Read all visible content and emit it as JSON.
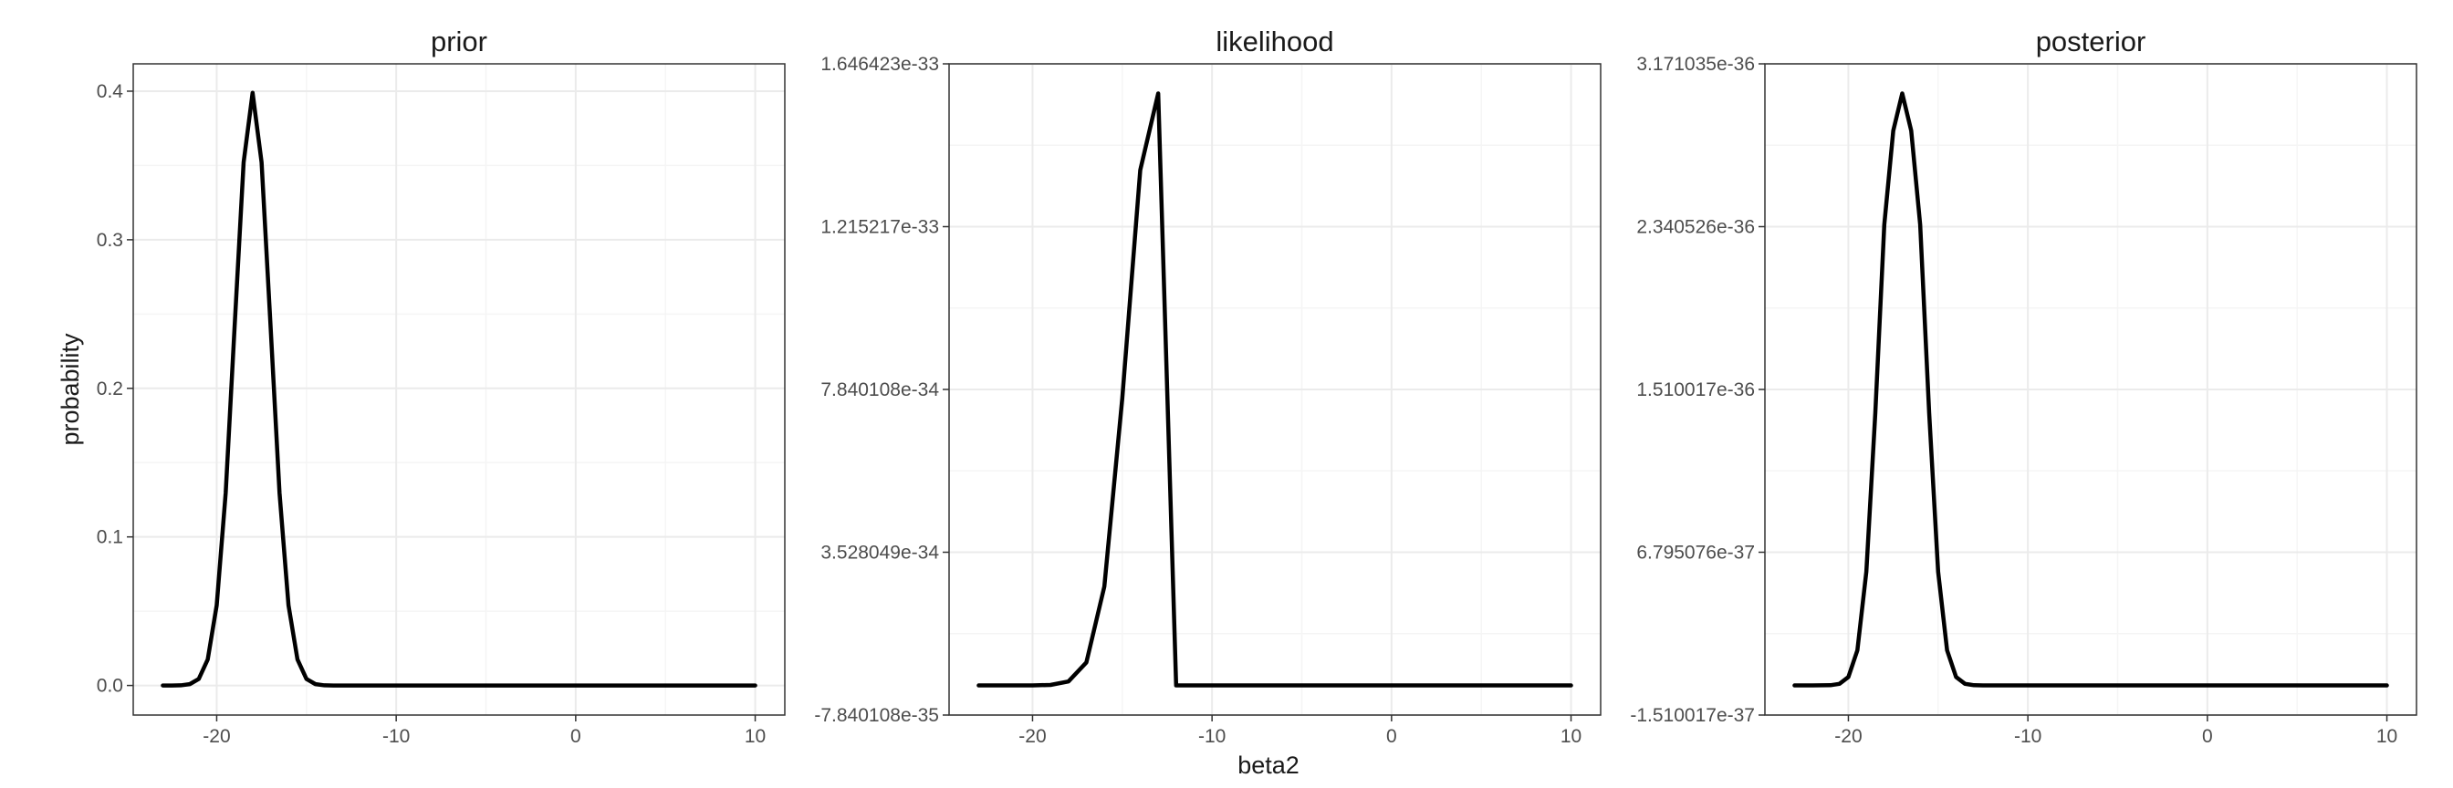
{
  "figure": {
    "xlabel": "beta2",
    "ylabel": "probability"
  },
  "chart_data": [
    {
      "type": "line",
      "title": "prior",
      "xlim": [
        -24.65,
        11.65
      ],
      "ylim": [
        -0.0199,
        0.4184
      ],
      "x_ticks": [
        -20,
        -10,
        0,
        10
      ],
      "x_tick_labels": [
        "-20",
        "-10",
        "0",
        "10"
      ],
      "y_ticks": [
        0.0,
        0.1,
        0.2,
        0.3,
        0.4
      ],
      "y_tick_labels": [
        "0.0",
        "0.1",
        "0.2",
        "0.3",
        "0.4"
      ],
      "grid": true,
      "series": [
        {
          "x": [
            -23,
            -22.5,
            -22,
            -21.5,
            -21,
            -20.5,
            -20,
            -19.5,
            -19,
            -18.5,
            -18,
            -17.5,
            -17,
            -16.5,
            -16,
            -15.5,
            -15,
            -14.5,
            -14,
            -13.5,
            -13,
            -12,
            -10,
            -5,
            0,
            5,
            10
          ],
          "y": [
            0.0,
            0.0,
            0.0001,
            0.0009,
            0.0044,
            0.0175,
            0.054,
            0.1295,
            0.242,
            0.3521,
            0.3989,
            0.3521,
            0.242,
            0.1295,
            0.054,
            0.0175,
            0.0044,
            0.0009,
            0.0001,
            0.0,
            0.0,
            0.0,
            0.0,
            0.0,
            0.0,
            0.0,
            0.0
          ]
        }
      ]
    },
    {
      "type": "line",
      "title": "likelihood",
      "xlim": [
        -24.65,
        11.65
      ],
      "ylim": [
        -7.840108e-35,
        1.646423e-33
      ],
      "x_ticks": [
        -20,
        -10,
        0,
        10
      ],
      "x_tick_labels": [
        "-20",
        "-10",
        "0",
        "10"
      ],
      "y_ticks": [
        -7.840108e-35,
        3.528049e-34,
        7.840108e-34,
        1.215217e-33,
        1.646423e-33
      ],
      "y_tick_labels": [
        "-7.840108e-35",
        "3.528049e-34",
        "7.840108e-34",
        "1.215217e-33",
        "1.646423e-33"
      ],
      "grid": true,
      "series": [
        {
          "x": [
            -23,
            -22,
            -21,
            -20,
            -19,
            -18,
            -17,
            -16,
            -15,
            -14,
            -13,
            -12,
            -11,
            -10.5,
            -10,
            -9,
            -8,
            -7,
            -6,
            -5,
            -4,
            -3,
            -2,
            -1,
            0,
            2,
            5,
            10
          ],
          "y": [
            0,
            0,
            0,
            1.2e-37,
            1.35e-36,
            1.05e-35,
            6.1e-35,
            2.62e-34,
            7.61e-34,
            1.365e-33,
            1.568e-33,
            0,
            0,
            0,
            0,
            0,
            0,
            0,
            0,
            0,
            0,
            0,
            0,
            0,
            0,
            0,
            0,
            0
          ]
        }
      ]
    },
    {
      "type": "line",
      "title": "posterior",
      "xlim": [
        -24.65,
        11.65
      ],
      "ylim": [
        -1.510017e-37,
        3.171035e-36
      ],
      "x_ticks": [
        -20,
        -10,
        0,
        10
      ],
      "x_tick_labels": [
        "-20",
        "-10",
        "0",
        "10"
      ],
      "y_ticks": [
        -1.510017e-37,
        6.795076e-37,
        1.510017e-36,
        2.340526e-36,
        3.171035e-36
      ],
      "y_tick_labels": [
        "-1.510017e-37",
        "6.795076e-37",
        "1.510017e-36",
        "2.340526e-36",
        "3.171035e-36"
      ],
      "grid": true,
      "series": [
        {
          "x": [
            -23,
            -22,
            -21,
            -20.5,
            -20,
            -19.5,
            -19,
            -18.5,
            -18,
            -17.5,
            -17,
            -16.5,
            -16,
            -15.5,
            -15,
            -14.5,
            -14,
            -13.5,
            -13,
            -12.5,
            -12,
            -11,
            -10,
            -5,
            0,
            5,
            10
          ],
          "y": [
            0,
            0,
            1.2e-39,
            8e-39,
            4.3e-38,
            1.79e-37,
            5.8e-37,
            1.39e-36,
            2.35e-36,
            2.83e-36,
            3.02e-36,
            2.83e-36,
            2.35e-36,
            1.39e-36,
            5.8e-37,
            1.79e-37,
            4.3e-38,
            8e-39,
            1.2e-39,
            0,
            0,
            0,
            0,
            0,
            0,
            0,
            0
          ]
        }
      ]
    }
  ]
}
